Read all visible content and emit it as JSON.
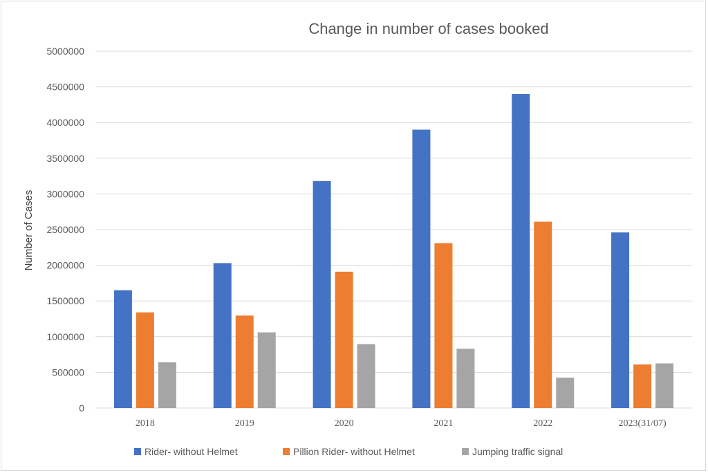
{
  "chart_data": {
    "type": "bar",
    "title": "Change in number of cases booked",
    "xlabel": "",
    "ylabel": "Number of Cases",
    "ylim": [
      0,
      5000000
    ],
    "yticks": [
      0,
      500000,
      1000000,
      1500000,
      2000000,
      2500000,
      3000000,
      3500000,
      4000000,
      4500000,
      5000000
    ],
    "categories": [
      "2018",
      "2019",
      "2020",
      "2021",
      "2022",
      "2023(31/07)"
    ],
    "series": [
      {
        "name": "Rider- without Helmet",
        "color": "#4472c4",
        "values": [
          1650000,
          2030000,
          3180000,
          3900000,
          4400000,
          2460000
        ]
      },
      {
        "name": "Pillion Rider- without Helmet",
        "color": "#ed7d31",
        "values": [
          1340000,
          1295000,
          1910000,
          2310000,
          2610000,
          610000
        ]
      },
      {
        "name": "Jumping traffic signal",
        "color": "#a5a5a5",
        "values": [
          640000,
          1060000,
          895000,
          830000,
          425000,
          625000
        ]
      }
    ],
    "grid": true,
    "legend": "bottom"
  }
}
